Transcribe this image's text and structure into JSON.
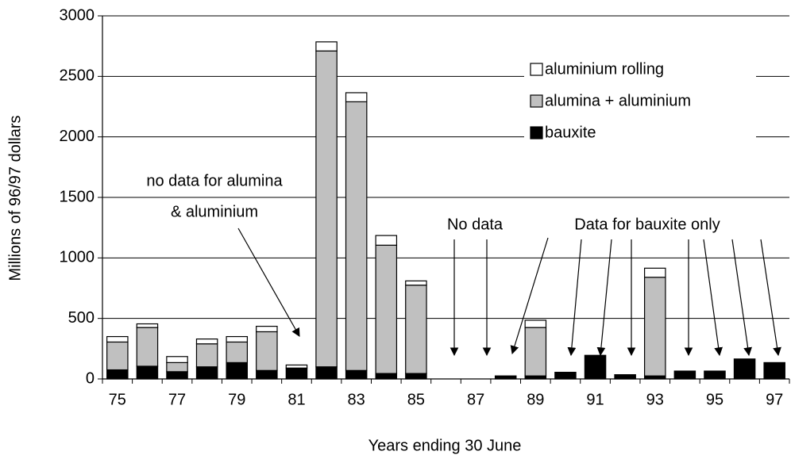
{
  "chart_data": {
    "type": "stacked_bar",
    "y_label": "Millions of 96/97 dollars",
    "x_label": "Years ending 30 June",
    "categories": [
      "75",
      null,
      "77",
      null,
      "79",
      null,
      "81",
      null,
      "83",
      null,
      "85",
      null,
      "87",
      null,
      "89",
      null,
      "91",
      null,
      "93",
      null,
      "95",
      null,
      "97"
    ],
    "series": [
      {
        "name": "bauxite",
        "color": "#000000",
        "values": [
          75,
          105,
          60,
          100,
          135,
          70,
          90,
          100,
          70,
          45,
          45,
          null,
          null,
          25,
          25,
          55,
          195,
          35,
          25,
          65,
          65,
          165,
          135
        ]
      },
      {
        "name": "alumina + aluminium",
        "color": "#c0c0c0",
        "values": [
          230,
          320,
          75,
          190,
          170,
          320,
          null,
          2610,
          2220,
          1060,
          730,
          null,
          null,
          null,
          400,
          null,
          null,
          null,
          815,
          null,
          null,
          null,
          null
        ]
      },
      {
        "name": "aluminium rolling",
        "color": "#ffffff",
        "values": [
          45,
          30,
          50,
          40,
          45,
          45,
          25,
          75,
          75,
          80,
          35,
          null,
          null,
          null,
          60,
          null,
          null,
          null,
          75,
          null,
          null,
          null,
          null
        ]
      }
    ],
    "ylim": [
      0,
      3000
    ],
    "yticks": [
      0,
      500,
      1000,
      1500,
      2000,
      2500,
      3000
    ],
    "grid": true,
    "legend": "top-right",
    "annotations": [
      "no data for alumina",
      "& aluminium",
      "No data",
      "Data for bauxite only"
    ]
  }
}
